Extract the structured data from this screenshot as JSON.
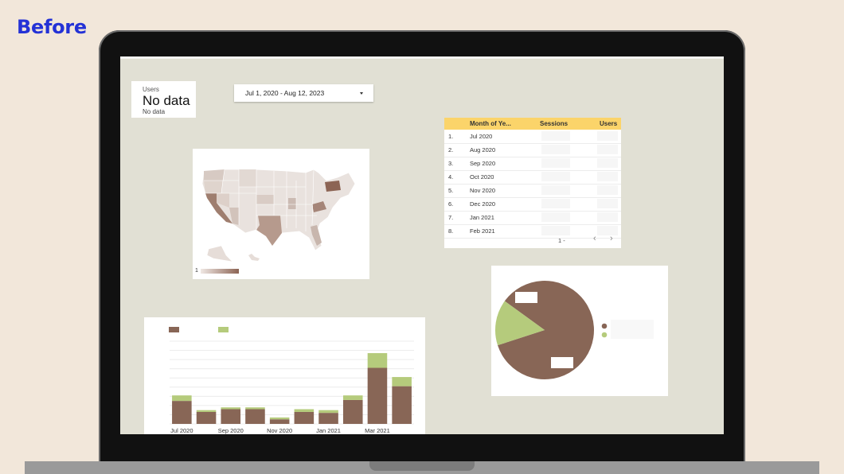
{
  "heading": "Before",
  "scorecard": {
    "label": "Users",
    "value": "No data",
    "sub": "No data"
  },
  "date_range": {
    "label": "Jul 1, 2020 - Aug 12, 2023"
  },
  "table": {
    "columns": [
      "Month of Ye...",
      "Sessions",
      "Users"
    ],
    "rows": [
      {
        "idx": "1.",
        "month": "Jul 2020"
      },
      {
        "idx": "2.",
        "month": "Aug 2020"
      },
      {
        "idx": "3.",
        "month": "Sep 2020"
      },
      {
        "idx": "4.",
        "month": "Oct 2020"
      },
      {
        "idx": "5.",
        "month": "Nov 2020"
      },
      {
        "idx": "6.",
        "month": "Dec 2020"
      },
      {
        "idx": "7.",
        "month": "Jan 2021"
      },
      {
        "idx": "8.",
        "month": "Feb 2021"
      }
    ],
    "pager_label": "1 -",
    "prev_icon": "chevron-left-icon",
    "next_icon": "chevron-right-icon"
  },
  "map": {
    "legend_min": "1"
  },
  "colors": {
    "brown": "#886656",
    "green": "#b5cb7c",
    "header_yellow": "#fbd46a",
    "screen_bg": "#e1e0d4",
    "heading_blue": "#2432d6"
  },
  "chart_data": [
    {
      "type": "bar",
      "stacked": true,
      "categories": [
        "Jul 2020",
        "Aug 2020",
        "Sep 2020",
        "Oct 2020",
        "Nov 2020",
        "Dec 2020",
        "Jan 2021",
        "Feb 2021",
        "Mar 2021",
        "Apr 2021"
      ],
      "tick_labels": [
        "Jul 2020",
        "Sep 2020",
        "Nov 2020",
        "Jan 2021",
        "Mar 2021"
      ],
      "series": [
        {
          "color": "#886656",
          "values": [
            25,
            13,
            16,
            16,
            5,
            13,
            12,
            26,
            61,
            41
          ]
        },
        {
          "color": "#b5cb7c",
          "values": [
            6,
            2,
            2,
            2,
            2,
            3,
            3,
            5,
            16,
            10
          ]
        }
      ],
      "ylim": [
        0,
        90
      ],
      "grid": true,
      "legend_position": "top-left"
    },
    {
      "type": "pie",
      "slices": [
        {
          "color": "#886656",
          "value": 85
        },
        {
          "color": "#b5cb7c",
          "value": 15
        }
      ],
      "legend_position": "right"
    }
  ]
}
